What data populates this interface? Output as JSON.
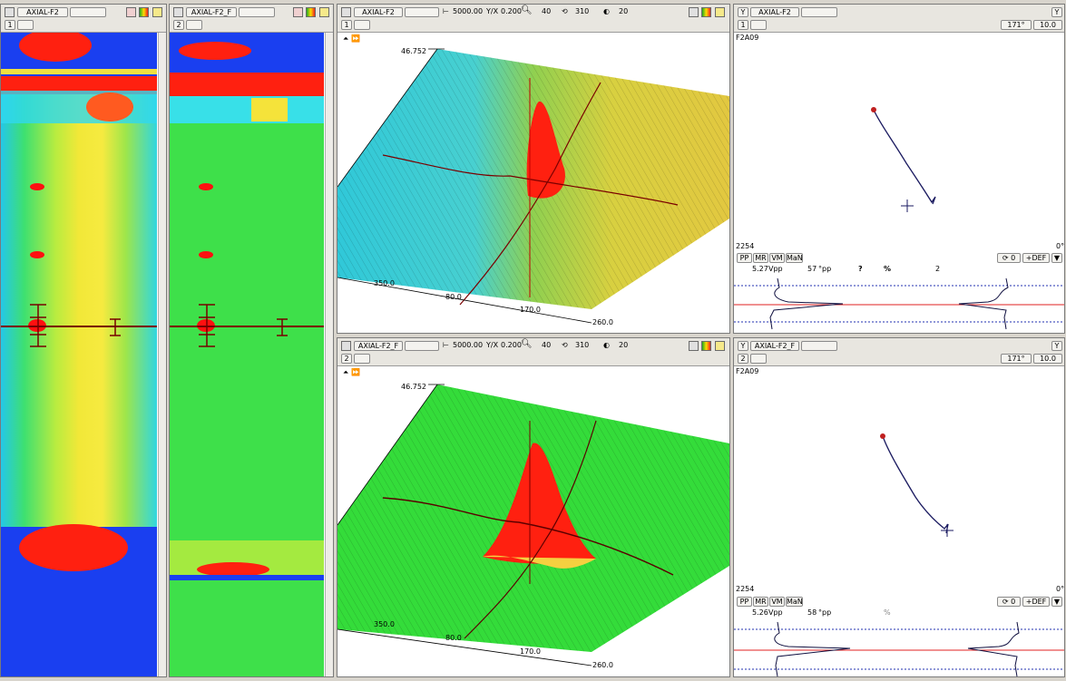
{
  "strip1": {
    "channel": "AXIAL-F2",
    "page": "1"
  },
  "strip2": {
    "channel": "AXIAL-F2_F",
    "page": "2"
  },
  "view3d_top": {
    "channel": "AXIAL-F2",
    "page": "1",
    "span": "5000.00",
    "yx_label": "Y/X",
    "yx": "0.200",
    "v1": "40",
    "v2": "310",
    "v3": "20",
    "zmax": "46.752",
    "ticks": [
      "350.0",
      "80.0",
      "170.0",
      "260.0"
    ]
  },
  "view3d_bot": {
    "channel": "AXIAL-F2_F",
    "page": "2",
    "span": "5000.00",
    "yx_label": "Y/X",
    "yx": "0.200",
    "v1": "40",
    "v2": "310",
    "v3": "20",
    "zmax": "46.752",
    "ticks": [
      "350.0",
      "80.0",
      "170.0",
      "260.0"
    ]
  },
  "lissa_top": {
    "channel": "AXIAL-F2",
    "page": "1",
    "angle": "171°",
    "scale": "10.0",
    "name": "F2A09",
    "bl": "2254",
    "br": "0°",
    "btns": [
      "PP",
      "MR",
      "VM",
      "MaN"
    ],
    "rot": "⟳ 0",
    "def": "+DEF",
    "vpp_val": "5.27",
    "vpp_unit": "Vpp",
    "pct_val": "57",
    "pct_unit": "°pp",
    "q": "?",
    "pct": "%",
    "n": "2"
  },
  "lissa_bot": {
    "channel": "AXIAL-F2_F",
    "page": "2",
    "angle": "171°",
    "scale": "10.0",
    "name": "F2A09",
    "bl": "2254",
    "br": "0°",
    "btns": [
      "PP",
      "MR",
      "VM",
      "MaN"
    ],
    "rot": "⟳ 0",
    "def": "+DEF",
    "vpp_val": "5.26",
    "vpp_unit": "Vpp",
    "pct_val": "58",
    "pct_unit": "°pp",
    "pct": "%"
  },
  "colors": {
    "blue": "#1a3ff0",
    "red": "#ff1a10",
    "yellow": "#f5e33a",
    "green": "#2de22a",
    "cyan": "#2fd6f5"
  }
}
